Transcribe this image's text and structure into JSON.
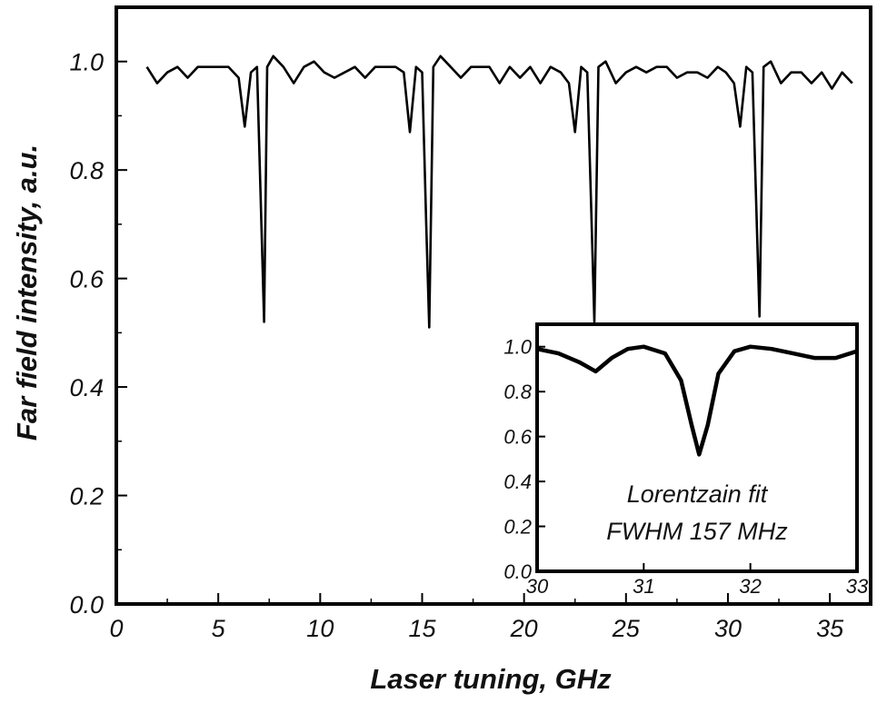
{
  "chart_data": [
    {
      "type": "line",
      "panel": "main",
      "xlabel": "Laser tuning, GHz",
      "ylabel": "Far field intensity, a.u.",
      "xlim": [
        0,
        37
      ],
      "ylim": [
        0.0,
        1.1
      ],
      "x_ticks": [
        "0",
        "5",
        "10",
        "15",
        "20",
        "25",
        "30",
        "35"
      ],
      "y_ticks": [
        "0.0",
        "0.2",
        "0.4",
        "0.6",
        "0.8",
        "1.0"
      ],
      "grid": false,
      "series": [
        {
          "x": [
            1.5,
            2.0,
            2.5,
            3.0,
            3.5,
            4.0,
            4.5,
            5.0,
            5.5,
            6.0,
            6.3,
            6.6,
            6.9,
            7.1,
            7.25,
            7.4,
            7.7,
            8.2,
            8.7,
            9.2,
            9.7,
            10.2,
            10.7,
            11.2,
            11.7,
            12.2,
            12.7,
            13.2,
            13.7,
            14.1,
            14.4,
            14.7,
            15.0,
            15.2,
            15.35,
            15.55,
            15.9,
            16.4,
            16.9,
            17.4,
            17.8,
            18.3,
            18.8,
            19.3,
            19.8,
            20.3,
            20.8,
            21.3,
            21.8,
            22.2,
            22.5,
            22.8,
            23.1,
            23.3,
            23.45,
            23.65,
            24.0,
            24.5,
            25.0,
            25.5,
            26.0,
            26.5,
            27.0,
            27.5,
            28.0,
            28.5,
            29.0,
            29.5,
            29.9,
            30.3,
            30.6,
            30.9,
            31.2,
            31.4,
            31.55,
            31.75,
            32.1,
            32.6,
            33.1,
            33.6,
            34.1,
            34.6,
            35.1,
            35.6,
            36.1
          ],
          "y": [
            0.99,
            0.96,
            0.98,
            0.99,
            0.97,
            0.99,
            0.99,
            0.99,
            0.99,
            0.97,
            0.88,
            0.98,
            0.99,
            0.72,
            0.52,
            0.99,
            1.01,
            0.99,
            0.96,
            0.99,
            1.0,
            0.98,
            0.97,
            0.98,
            0.99,
            0.97,
            0.99,
            0.99,
            0.99,
            0.98,
            0.87,
            0.99,
            0.98,
            0.7,
            0.51,
            0.99,
            1.01,
            0.99,
            0.97,
            0.99,
            0.99,
            0.99,
            0.96,
            0.99,
            0.97,
            0.99,
            0.96,
            0.99,
            0.98,
            0.96,
            0.87,
            0.99,
            0.98,
            0.72,
            0.52,
            0.99,
            1.0,
            0.96,
            0.98,
            0.99,
            0.98,
            0.99,
            0.99,
            0.97,
            0.98,
            0.98,
            0.97,
            0.99,
            0.98,
            0.96,
            0.88,
            0.99,
            0.98,
            0.72,
            0.53,
            0.99,
            1.0,
            0.96,
            0.98,
            0.98,
            0.96,
            0.98,
            0.95,
            0.98,
            0.96
          ]
        }
      ]
    },
    {
      "type": "line",
      "panel": "inset",
      "xlim": [
        30,
        33
      ],
      "ylim": [
        0.0,
        1.1
      ],
      "x_ticks": [
        "30",
        "31",
        "32",
        "33"
      ],
      "y_ticks": [
        "0.0",
        "0.2",
        "0.4",
        "0.6",
        "0.8",
        "1.0"
      ],
      "grid": false,
      "annotations": [
        "Lorentzain fit",
        "FWHM 157 MHz"
      ],
      "series": [
        {
          "x": [
            30.0,
            30.2,
            30.4,
            30.55,
            30.7,
            30.85,
            31.0,
            31.2,
            31.35,
            31.45,
            31.52,
            31.6,
            31.7,
            31.85,
            32.0,
            32.2,
            32.4,
            32.6,
            32.8,
            33.0
          ],
          "y": [
            0.99,
            0.97,
            0.93,
            0.89,
            0.95,
            0.99,
            1.0,
            0.97,
            0.85,
            0.65,
            0.52,
            0.65,
            0.88,
            0.98,
            1.0,
            0.99,
            0.97,
            0.95,
            0.95,
            0.98
          ]
        }
      ]
    }
  ]
}
